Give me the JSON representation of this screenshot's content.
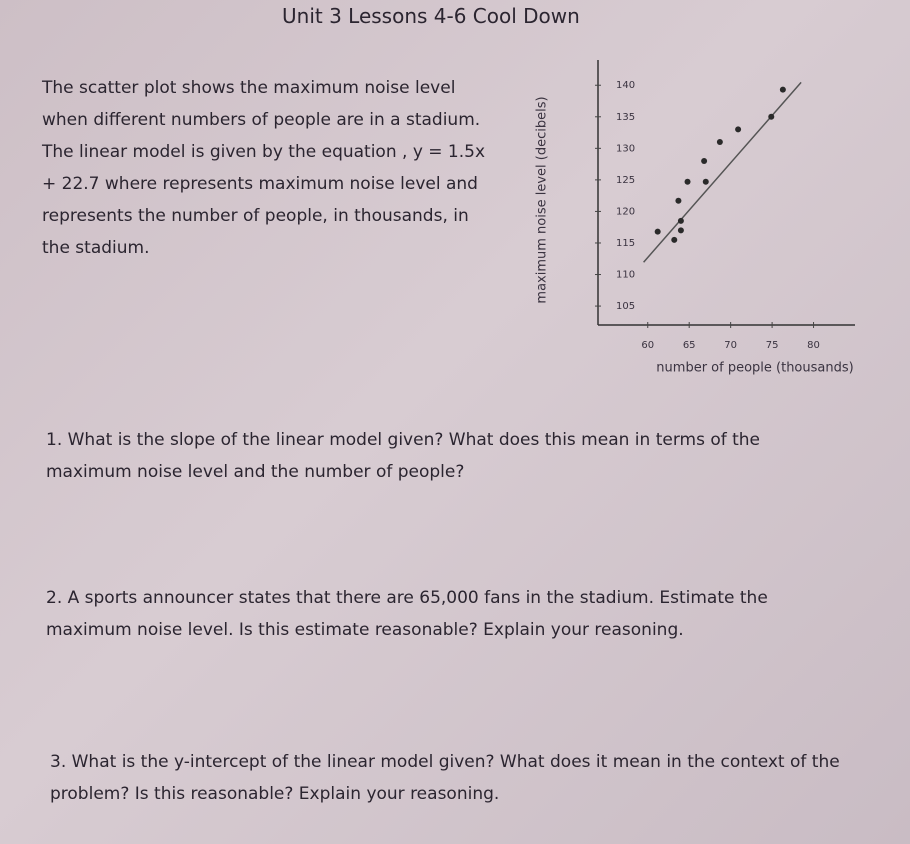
{
  "header": {
    "title": "Unit 3 Lessons 4-6 Cool Down"
  },
  "intro": "The scatter plot shows the maximum noise level when different numbers of people are in a stadium. The linear model is given by the equation , y = 1.5x + 22.7 where represents maximum noise level and represents the number of people, in thousands, in the stadium.",
  "chart_data": {
    "type": "scatter",
    "x_label": "number of people (thousands)",
    "y_label": "maximum noise level (decibels)",
    "x": [
      61.2,
      63.2,
      64.0,
      64.0,
      63.7,
      64.8,
      67.0,
      66.8,
      68.7,
      70.9,
      74.9,
      76.3
    ],
    "values": [
      116.8,
      115.5,
      117.0,
      118.5,
      121.7,
      124.7,
      124.7,
      128.0,
      131.0,
      133.0,
      135.0,
      139.3
    ],
    "color": "#2a2a2a",
    "trend_line": {
      "x": [
        59.5,
        78.5
      ],
      "y": [
        111.95,
        140.45
      ],
      "color": "#555555"
    },
    "xlim": [
      54,
      85
    ],
    "ylim": [
      102,
      144
    ],
    "xticks": [
      60,
      65,
      70,
      75,
      80
    ],
    "yticks": [
      105,
      110,
      115,
      120,
      125,
      130,
      135,
      140
    ],
    "grid": false
  },
  "questions": [
    "1. What is the slope of the linear model given? What does this mean in terms of the maximum noise level and the number of people?",
    "2. A sports announcer states that there are 65,000 fans in the stadium. Estimate the maximum noise level. Is this estimate reasonable? Explain your reasoning.",
    "3. What is the y-intercept of the linear model given? What does it mean in the context of the problem? Is this reasonable? Explain your reasoning."
  ]
}
